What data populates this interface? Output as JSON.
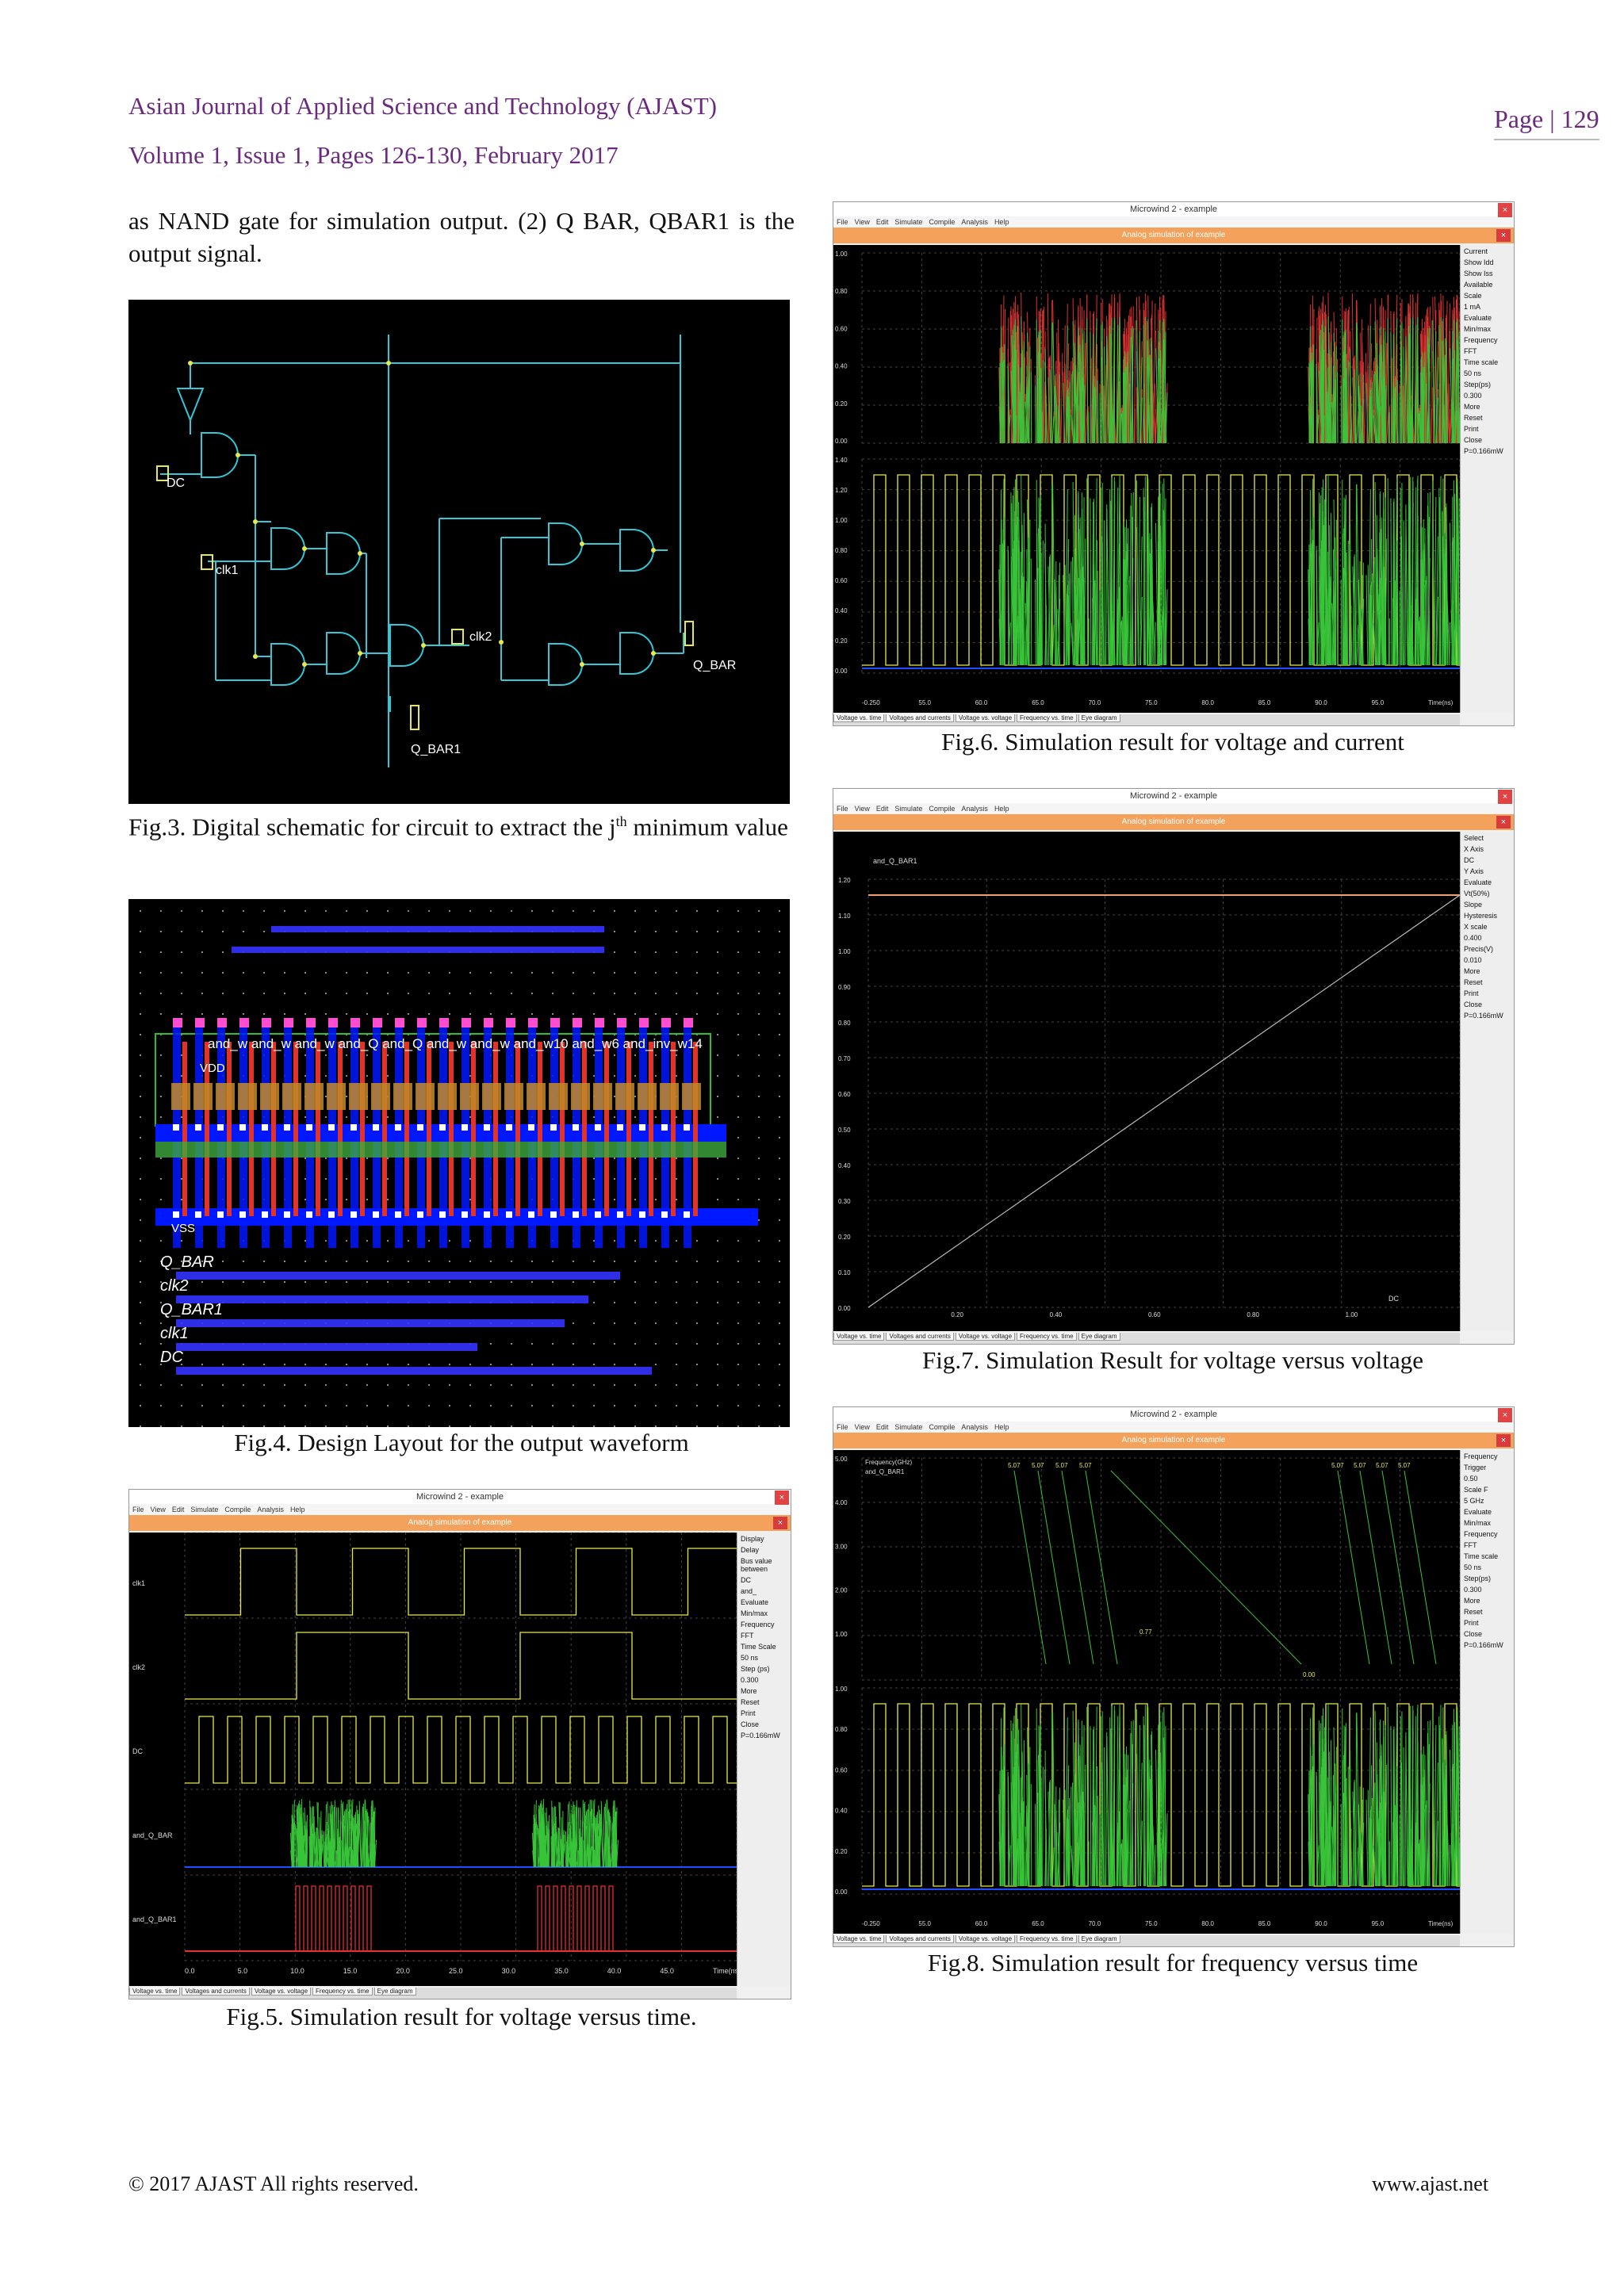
{
  "header": {
    "journal": "Asian Journal of Applied Science and Technology (AJAST)",
    "volume": "Volume 1, Issue 1, Pages 126-130, February 2017",
    "page": "Page | 129"
  },
  "body_text": "as NAND gate for simulation output. (2) Q BAR, QBAR1 is the output signal.",
  "figures": {
    "fig3": {
      "caption": "Fig.3. Digital schematic for circuit to extract the j",
      "caption_sup": "th",
      "caption_rest": " minimum value",
      "labels": {
        "dc": "DC",
        "clk1": "clk1",
        "clk2": "clk2",
        "q_bar": "Q_BAR",
        "q_bar1": "Q_BAR1"
      }
    },
    "fig4": {
      "caption": "Fig.4. Design Layout for the output waveform",
      "row_labels": "and_w and_w and_w and_Q and_Q and_w and_w and_w10 and_w6 and_inv_w14",
      "vdd": "VDD",
      "vss": "VSS",
      "signals": [
        "Q_BAR",
        "clk2",
        "Q_BAR1",
        "clk1",
        "DC"
      ]
    },
    "fig5": {
      "caption": "Fig.5. Simulation result for voltage versus time.",
      "window_title": "Microwind 2 - example",
      "sim_title": "Analog simulation of example",
      "menu": [
        "File",
        "View",
        "Edit",
        "Simulate",
        "Compile",
        "Analysis",
        "Help"
      ],
      "traces": [
        "clk1",
        "clk2",
        "DC",
        "and_Q_BAR",
        "and_Q_BAR1"
      ],
      "panel": [
        "Display",
        "Delay",
        "Bus value between",
        "DC",
        "and_",
        "Evaluate",
        "Min/max",
        "Frequency",
        "FFT",
        "Time Scale",
        "50 ns",
        "Step (ps)",
        "0.300",
        "More",
        "Reset",
        "Print",
        "Close",
        "P=0.166mW"
      ],
      "x_ticks": [
        "0.0",
        "5.0",
        "10.0",
        "15.0",
        "20.0",
        "25.0",
        "30.0",
        "35.0",
        "40.0",
        "45.0",
        "Time(ns)"
      ],
      "tabs": [
        "Voltage vs. time",
        "Voltages and currents",
        "Voltage vs. voltage",
        "Frequency vs. time",
        "Eye diagram"
      ]
    },
    "fig6": {
      "caption": "Fig.6. Simulation result for voltage and current",
      "window_title": "Microwind 2 - example",
      "sim_title": "Analog simulation of example",
      "menu": [
        "File",
        "View",
        "Edit",
        "Simulate",
        "Compile",
        "Analysis",
        "Help"
      ],
      "panel": [
        "Current",
        "Show Idd",
        "Show Iss",
        "Available",
        "Scale",
        "1 mA",
        "Evaluate",
        "Min/max",
        "Frequency",
        "FFT",
        "Time scale",
        "50 ns",
        "Step(ps)",
        "0.300",
        "More",
        "Reset",
        "Print",
        "Close",
        "P=0.166mW"
      ],
      "y_ticks_top": [
        "1.00",
        "0.80",
        "0.60",
        "0.40",
        "0.20",
        "0.00"
      ],
      "y_ticks_bottom": [
        "1.40",
        "1.20",
        "1.00",
        "0.80",
        "0.60",
        "0.40",
        "0.20",
        "0.00"
      ],
      "x_ticks": [
        "-0.250",
        "55.0",
        "60.0",
        "65.0",
        "70.0",
        "75.0",
        "80.0",
        "85.0",
        "90.0",
        "95.0",
        "Time(ns)"
      ],
      "tabs": [
        "Voltage vs. time",
        "Voltages and currents",
        "Voltage vs. voltage",
        "Frequency vs. time",
        "Eye diagram"
      ]
    },
    "fig7": {
      "caption": "Fig.7. Simulation Result for voltage versus voltage",
      "window_title": "Microwind 2 - example",
      "sim_title": "Analog simulation of example",
      "menu": [
        "File",
        "View",
        "Edit",
        "Simulate",
        "Compile",
        "Analysis",
        "Help"
      ],
      "trace_label": "and_Q_BAR1",
      "x_axis_label": "DC",
      "panel": [
        "Select",
        "X Axis",
        "DC",
        "Y Axis",
        "Evaluate",
        "Vt(50%)",
        "Slope",
        "Hysteresis",
        "X scale",
        "0.400",
        "Precis(V)",
        "0.010",
        "More",
        "Reset",
        "Print",
        "Close",
        "P=0.166mW"
      ],
      "y_ticks": [
        "1.20",
        "1.10",
        "1.00",
        "0.90",
        "0.80",
        "0.70",
        "0.60",
        "0.50",
        "0.40",
        "0.30",
        "0.20",
        "0.10",
        "0.00"
      ],
      "x_ticks": [
        "0.20",
        "0.40",
        "0.60",
        "0.80",
        "1.00"
      ],
      "tabs": [
        "Voltage vs. time",
        "Voltages and currents",
        "Voltage vs. voltage",
        "Frequency vs. time",
        "Eye diagram"
      ]
    },
    "fig8": {
      "caption": "Fig.8. Simulation result for frequency versus time",
      "window_title": "Microwind 2 - example",
      "sim_title": "Analog simulation of example",
      "menu": [
        "File",
        "View",
        "Edit",
        "Simulate",
        "Compile",
        "Analysis",
        "Help"
      ],
      "top_labels": [
        "Frequency(GHz)",
        "and_Q_BAR1"
      ],
      "freq_values": [
        "5.07",
        "5.07",
        "5.07",
        "5.07",
        "5.07",
        "5.07",
        "5.07",
        "5.07"
      ],
      "min_value": "0.77",
      "zero_value": "0.00",
      "panel": [
        "Frequency",
        "Trigger",
        "0.50",
        "Scale F",
        "5 GHz",
        "Evaluate",
        "Min/max",
        "Frequency",
        "FFT",
        "Time scale",
        "50 ns",
        "Step(ps)",
        "0.300",
        "More",
        "Reset",
        "Print",
        "Close",
        "P=0.166mW"
      ],
      "y_ticks_top": [
        "5.00",
        "4.00",
        "3.00",
        "2.00",
        "1.00"
      ],
      "y_ticks_bottom": [
        "1.00",
        "0.80",
        "0.60",
        "0.40",
        "0.20",
        "0.00"
      ],
      "x_ticks": [
        "-0.250",
        "55.0",
        "60.0",
        "65.0",
        "70.0",
        "75.0",
        "80.0",
        "85.0",
        "90.0",
        "95.0",
        "Time(ns)"
      ],
      "tabs": [
        "Voltage vs. time",
        "Voltages and currents",
        "Voltage vs. voltage",
        "Frequency vs. time",
        "Eye diagram"
      ]
    }
  },
  "footer": {
    "copyright": "© 2017 AJAST All rights reserved.",
    "website": "www.ajast.net"
  }
}
